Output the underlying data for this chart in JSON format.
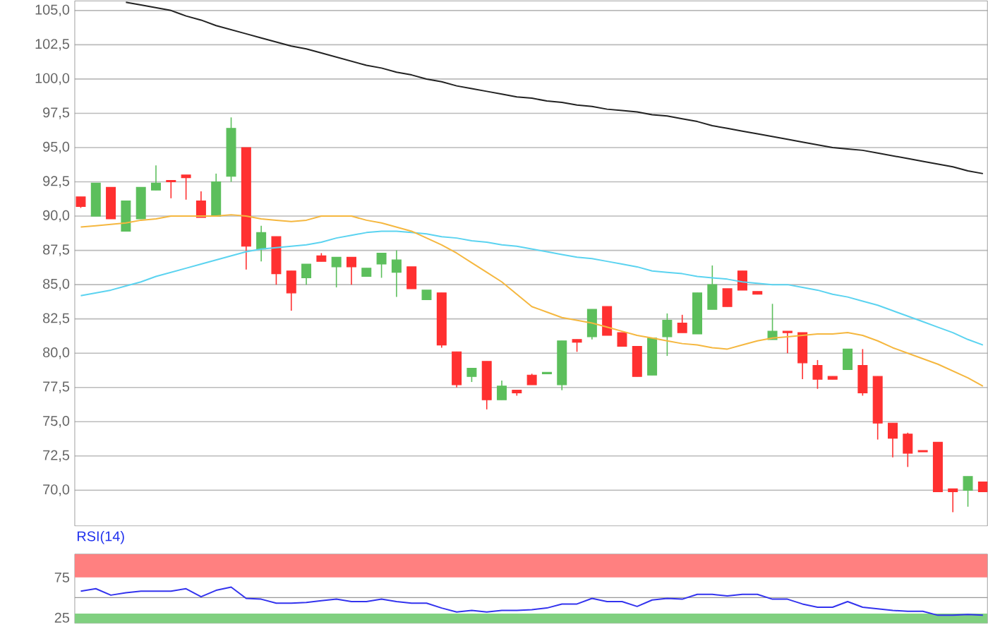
{
  "chart_data": [
    {
      "type": "candlestick",
      "categories": [
        null,
        null,
        null,
        null,
        null,
        null,
        null,
        null,
        null,
        null,
        null,
        null,
        null,
        null,
        null,
        null,
        null,
        null,
        null,
        null,
        null,
        null,
        null,
        null,
        null,
        null,
        null,
        null,
        null,
        null,
        null,
        null,
        null,
        null,
        null,
        null,
        null,
        null,
        null,
        null,
        null,
        null,
        null,
        null,
        null,
        null,
        null,
        null,
        null,
        null,
        null,
        null,
        null,
        null,
        null,
        null,
        null,
        null,
        null,
        null,
        null
      ],
      "ohlc": [
        [
          91.4,
          91.4,
          90.6,
          90.7
        ],
        [
          90.0,
          92.4,
          90.0,
          92.4
        ],
        [
          92.1,
          92.1,
          89.8,
          89.8
        ],
        [
          88.9,
          91.1,
          88.9,
          91.1
        ],
        [
          89.8,
          92.1,
          89.8,
          92.1
        ],
        [
          91.9,
          93.7,
          91.9,
          92.4
        ],
        [
          92.6,
          92.6,
          91.3,
          92.5
        ],
        [
          93.0,
          93.0,
          91.2,
          92.8
        ],
        [
          91.1,
          91.8,
          89.9,
          89.9
        ],
        [
          90.0,
          93.1,
          90.0,
          92.5
        ],
        [
          92.9,
          97.2,
          92.5,
          96.4
        ],
        [
          95.0,
          95.0,
          86.1,
          87.8
        ],
        [
          87.6,
          89.3,
          86.7,
          88.8
        ],
        [
          88.5,
          88.5,
          85.0,
          85.8
        ],
        [
          86.0,
          86.0,
          83.1,
          84.4
        ],
        [
          85.5,
          86.5,
          85.0,
          86.5
        ],
        [
          87.1,
          87.3,
          86.7,
          86.7
        ],
        [
          86.3,
          87.0,
          84.8,
          87.0
        ],
        [
          87.0,
          87.0,
          85.0,
          86.3
        ],
        [
          85.6,
          86.2,
          85.6,
          86.2
        ],
        [
          86.5,
          87.3,
          85.5,
          87.3
        ],
        [
          85.9,
          87.5,
          84.1,
          86.8
        ],
        [
          86.3,
          86.3,
          84.7,
          84.7
        ],
        [
          83.9,
          84.6,
          83.9,
          84.6
        ],
        [
          84.4,
          84.4,
          80.4,
          80.6
        ],
        [
          80.1,
          80.1,
          77.5,
          77.7
        ],
        [
          78.3,
          78.9,
          77.9,
          78.9
        ],
        [
          79.4,
          79.4,
          75.9,
          76.6
        ],
        [
          76.6,
          78.0,
          76.6,
          77.6
        ],
        [
          77.3,
          77.3,
          76.9,
          77.1
        ],
        [
          78.4,
          78.5,
          77.7,
          77.7
        ],
        [
          78.5,
          78.6,
          78.5,
          78.6
        ],
        [
          77.7,
          80.9,
          77.3,
          80.9
        ],
        [
          81.0,
          81.0,
          80.1,
          80.8
        ],
        [
          81.2,
          83.2,
          81.0,
          83.2
        ],
        [
          83.4,
          83.4,
          81.3,
          81.3
        ],
        [
          81.5,
          81.5,
          80.5,
          80.5
        ],
        [
          80.5,
          80.5,
          78.3,
          78.3
        ],
        [
          78.4,
          81.1,
          78.4,
          81.1
        ],
        [
          81.2,
          82.9,
          79.8,
          82.4
        ],
        [
          82.2,
          82.8,
          81.5,
          81.5
        ],
        [
          81.4,
          84.4,
          81.4,
          84.4
        ],
        [
          83.2,
          86.4,
          83.2,
          85.0
        ],
        [
          84.7,
          84.7,
          83.4,
          83.4
        ],
        [
          86.0,
          86.0,
          84.6,
          84.6
        ],
        [
          84.5,
          84.5,
          84.3,
          84.3
        ],
        [
          81.0,
          83.6,
          81.0,
          81.6
        ],
        [
          81.6,
          81.6,
          80.0,
          81.5
        ],
        [
          81.5,
          81.5,
          78.1,
          79.3
        ],
        [
          79.1,
          79.5,
          77.4,
          78.1
        ],
        [
          78.3,
          78.3,
          78.1,
          78.1
        ],
        [
          78.8,
          80.3,
          78.8,
          80.3
        ],
        [
          79.1,
          80.3,
          76.9,
          77.1
        ],
        [
          78.3,
          78.3,
          73.7,
          74.9
        ],
        [
          74.9,
          74.9,
          72.4,
          73.8
        ],
        [
          74.1,
          74.2,
          71.7,
          72.7
        ],
        [
          72.9,
          72.9,
          72.8,
          72.8
        ],
        [
          73.5,
          73.5,
          69.9,
          69.9
        ],
        [
          70.1,
          70.1,
          68.4,
          69.9
        ],
        [
          70.0,
          71.0,
          68.8,
          71.0
        ],
        [
          70.6,
          70.6,
          69.9,
          69.9
        ]
      ],
      "series": [
        {
          "type": "line",
          "color": "#222222",
          "values": [
            null,
            null,
            null,
            105.6,
            105.4,
            105.2,
            105.0,
            104.6,
            104.3,
            103.9,
            103.6,
            103.3,
            103.0,
            102.7,
            102.4,
            102.2,
            101.9,
            101.6,
            101.3,
            101.0,
            100.8,
            100.5,
            100.3,
            100.0,
            99.8,
            99.5,
            99.3,
            99.1,
            98.9,
            98.7,
            98.6,
            98.4,
            98.3,
            98.1,
            98.0,
            97.8,
            97.7,
            97.6,
            97.4,
            97.3,
            97.1,
            96.9,
            96.6,
            96.4,
            96.2,
            96.0,
            95.8,
            95.6,
            95.4,
            95.2,
            95.0,
            94.9,
            94.8,
            94.6,
            94.4,
            94.2,
            94.0,
            93.8,
            93.6,
            93.3,
            93.1
          ]
        },
        {
          "type": "line",
          "color": "#5bd3f0",
          "values": [
            84.2,
            84.4,
            84.6,
            84.9,
            85.2,
            85.6,
            85.9,
            86.2,
            86.5,
            86.8,
            87.1,
            87.4,
            87.6,
            87.7,
            87.8,
            87.9,
            88.1,
            88.4,
            88.6,
            88.8,
            88.9,
            88.9,
            88.8,
            88.7,
            88.5,
            88.4,
            88.2,
            88.1,
            87.9,
            87.8,
            87.6,
            87.4,
            87.2,
            87.0,
            86.9,
            86.7,
            86.5,
            86.3,
            86.0,
            85.9,
            85.8,
            85.6,
            85.5,
            85.4,
            85.2,
            85.1,
            85.0,
            85.0,
            84.8,
            84.6,
            84.3,
            84.1,
            83.8,
            83.5,
            83.1,
            82.7,
            82.3,
            81.9,
            81.5,
            81.0,
            80.6
          ]
        },
        {
          "type": "line",
          "color": "#f5b73f",
          "values": [
            89.2,
            89.3,
            89.4,
            89.5,
            89.7,
            89.8,
            90.0,
            90.0,
            90.0,
            90.0,
            90.1,
            90.0,
            89.8,
            89.7,
            89.6,
            89.7,
            90.0,
            90.0,
            90.0,
            89.7,
            89.5,
            89.2,
            88.9,
            88.4,
            87.9,
            87.3,
            86.6,
            85.9,
            85.2,
            84.3,
            83.4,
            83.0,
            82.6,
            82.4,
            82.2,
            81.9,
            81.6,
            81.3,
            81.1,
            80.9,
            80.7,
            80.6,
            80.4,
            80.3,
            80.6,
            80.9,
            81.1,
            81.2,
            81.3,
            81.4,
            81.4,
            81.5,
            81.3,
            80.9,
            80.4,
            80.0,
            79.6,
            79.2,
            78.7,
            78.2,
            77.6
          ]
        }
      ],
      "ylim": [
        67.4,
        105.7
      ],
      "yticks": [
        {
          "value": 70,
          "label": "70,0"
        },
        {
          "value": 72.5,
          "label": "72,5"
        },
        {
          "value": 75,
          "label": "75,0"
        },
        {
          "value": 77.5,
          "label": "77,5"
        },
        {
          "value": 80,
          "label": "80,0"
        },
        {
          "value": 82.5,
          "label": "82,5"
        },
        {
          "value": 85,
          "label": "85,0"
        },
        {
          "value": 87.5,
          "label": "87,5"
        },
        {
          "value": 90,
          "label": "90,0"
        },
        {
          "value": 92.5,
          "label": "92,5"
        },
        {
          "value": 95,
          "label": "95,0"
        },
        {
          "value": 97.5,
          "label": "97,5"
        },
        {
          "value": 100,
          "label": "100,0"
        },
        {
          "value": 102.5,
          "label": "102,5"
        },
        {
          "value": 105,
          "label": "105,0"
        }
      ],
      "grid": "y"
    },
    {
      "type": "line",
      "title": "RSI(14)",
      "categories": [
        null,
        null,
        null,
        null,
        null,
        null,
        null,
        null,
        null,
        null,
        null,
        null,
        null,
        null,
        null,
        null,
        null,
        null,
        null,
        null,
        null,
        null,
        null,
        null,
        null,
        null,
        null,
        null,
        null,
        null,
        null,
        null,
        null,
        null,
        null,
        null,
        null,
        null,
        null,
        null,
        null,
        null,
        null,
        null,
        null,
        null,
        null,
        null,
        null,
        null,
        null,
        null,
        null,
        null,
        null,
        null,
        null,
        null,
        null,
        null,
        null
      ],
      "series": [
        {
          "color": "#3333ee",
          "values": [
            58,
            61,
            53,
            56,
            58,
            58,
            58,
            61,
            51,
            59,
            63,
            49,
            48,
            43,
            43,
            44,
            46,
            48,
            45,
            45,
            48,
            45,
            43,
            43,
            37,
            32,
            34,
            32,
            34,
            34,
            35,
            37,
            42,
            42,
            49,
            45,
            45,
            39,
            47,
            49,
            48,
            54,
            54,
            52,
            54,
            54,
            48,
            48,
            42,
            38,
            38,
            45,
            38,
            36,
            34,
            33,
            33,
            28,
            28,
            29,
            28
          ]
        }
      ],
      "ylim": [
        18,
        104
      ],
      "yticks": [
        25,
        75
      ],
      "bands": [
        {
          "axis": "y",
          "from": 75,
          "to": 104,
          "color": "#ff8080"
        },
        {
          "axis": "y",
          "from": 18,
          "to": 30,
          "color": "#80d080"
        }
      ],
      "ref_lines": [
        {
          "axis": "y",
          "value": 50,
          "color": "#999999"
        }
      ]
    }
  ]
}
